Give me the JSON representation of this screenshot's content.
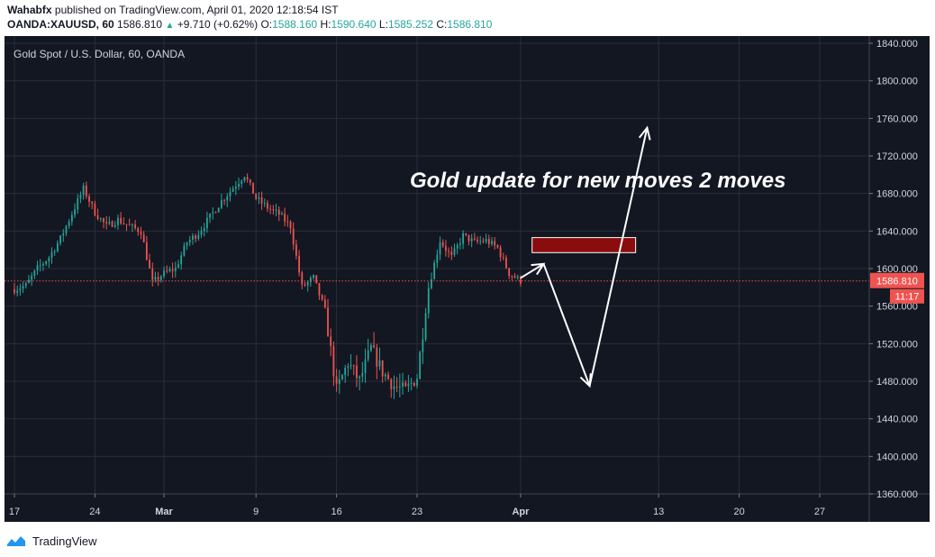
{
  "header": {
    "author": "Wahabfx",
    "published_text": "published on TradingView.com, April 01, 2020 12:18:54 IST",
    "symbol": "OANDA:XAUUSD, 60",
    "last": "1586.810",
    "change": "+9.710 (+0.62%)",
    "o_label": "O:",
    "o_val": "1588.160",
    "h_label": "H:",
    "h_val": "1590.640",
    "l_label": "L:",
    "l_val": "1585.252",
    "c_label": "C:",
    "c_val": "1586.810"
  },
  "footer": {
    "brand": "TradingView"
  },
  "chart_data": {
    "type": "candlestick",
    "title": "Gold Spot / U.S. Dollar, 60, OANDA",
    "annotation": "Gold update for new moves 2 moves",
    "price_tag": "1586.810",
    "countdown_tag": "11:17",
    "current_price": 1586.81,
    "ylim": [
      1350,
      1850
    ],
    "y_ticks": [
      1840,
      1800,
      1760,
      1720,
      1680,
      1640,
      1600,
      1560,
      1520,
      1480,
      1440,
      1400,
      1360
    ],
    "y_tick_labels": [
      "1840.000",
      "1800.000",
      "1760.000",
      "1720.000",
      "1680.000",
      "1640.000",
      "1600.000",
      "1560.000",
      "1520.000",
      "1480.000",
      "1440.000",
      "1400.000",
      "1360.000"
    ],
    "x_tick_labels": [
      "17",
      "24",
      "Mar",
      "9",
      "16",
      "23",
      "Apr",
      "13",
      "20",
      "27"
    ],
    "x_tick_dates": [
      "2020-02-17",
      "2020-02-24",
      "2020-03-01",
      "2020-03-09",
      "2020-03-16",
      "2020-03-23",
      "2020-04-01",
      "2020-04-13",
      "2020-04-20",
      "2020-04-27"
    ],
    "grid": true,
    "colors": {
      "up": "#26a69a",
      "down": "#ef5350",
      "background": "#131722",
      "grid": "#2a2e39",
      "price_line": "#ef5350",
      "box_fill": "#8b0c0c"
    },
    "price_path": [
      [
        "2020-02-17",
        1578
      ],
      [
        "2020-02-18",
        1582
      ],
      [
        "2020-02-19",
        1600
      ],
      [
        "2020-02-20",
        1612
      ],
      [
        "2020-02-21",
        1632
      ],
      [
        "2020-02-23",
        1685
      ],
      [
        "2020-02-24",
        1660
      ],
      [
        "2020-02-25",
        1645
      ],
      [
        "2020-02-26",
        1652
      ],
      [
        "2020-02-27",
        1645
      ],
      [
        "2020-02-28",
        1640
      ],
      [
        "2020-02-29",
        1585
      ],
      [
        "2020-03-01",
        1595
      ],
      [
        "2020-03-02",
        1600
      ],
      [
        "2020-03-03",
        1628
      ],
      [
        "2020-03-04",
        1638
      ],
      [
        "2020-03-05",
        1655
      ],
      [
        "2020-03-06",
        1672
      ],
      [
        "2020-03-08",
        1700
      ],
      [
        "2020-03-09",
        1675
      ],
      [
        "2020-03-10",
        1665
      ],
      [
        "2020-03-11",
        1658
      ],
      [
        "2020-03-12",
        1645
      ],
      [
        "2020-03-13",
        1580
      ],
      [
        "2020-03-14",
        1590
      ],
      [
        "2020-03-15",
        1555
      ],
      [
        "2020-03-16",
        1470
      ],
      [
        "2020-03-17",
        1500
      ],
      [
        "2020-03-18",
        1480
      ],
      [
        "2020-03-19",
        1515
      ],
      [
        "2020-03-20",
        1490
      ],
      [
        "2020-03-21",
        1475
      ],
      [
        "2020-03-22",
        1470
      ],
      [
        "2020-03-23",
        1485
      ],
      [
        "2020-03-24",
        1580
      ],
      [
        "2020-03-25",
        1630
      ],
      [
        "2020-03-26",
        1612
      ],
      [
        "2020-03-27",
        1635
      ],
      [
        "2020-03-28",
        1628
      ],
      [
        "2020-03-29",
        1630
      ],
      [
        "2020-03-30",
        1622
      ],
      [
        "2020-03-31",
        1595
      ],
      [
        "2020-04-01",
        1586.81
      ]
    ],
    "arrows": [
      [
        [
          "2020-04-01",
          1590
        ],
        [
          "2020-04-03",
          1605
        ]
      ],
      [
        [
          "2020-04-03",
          1605
        ],
        [
          "2020-04-07",
          1475
        ]
      ],
      [
        [
          "2020-04-07",
          1475
        ],
        [
          "2020-04-12",
          1750
        ]
      ]
    ],
    "box": {
      "x": [
        "2020-04-02",
        "2020-04-11"
      ],
      "y": [
        1617,
        1633
      ]
    }
  }
}
